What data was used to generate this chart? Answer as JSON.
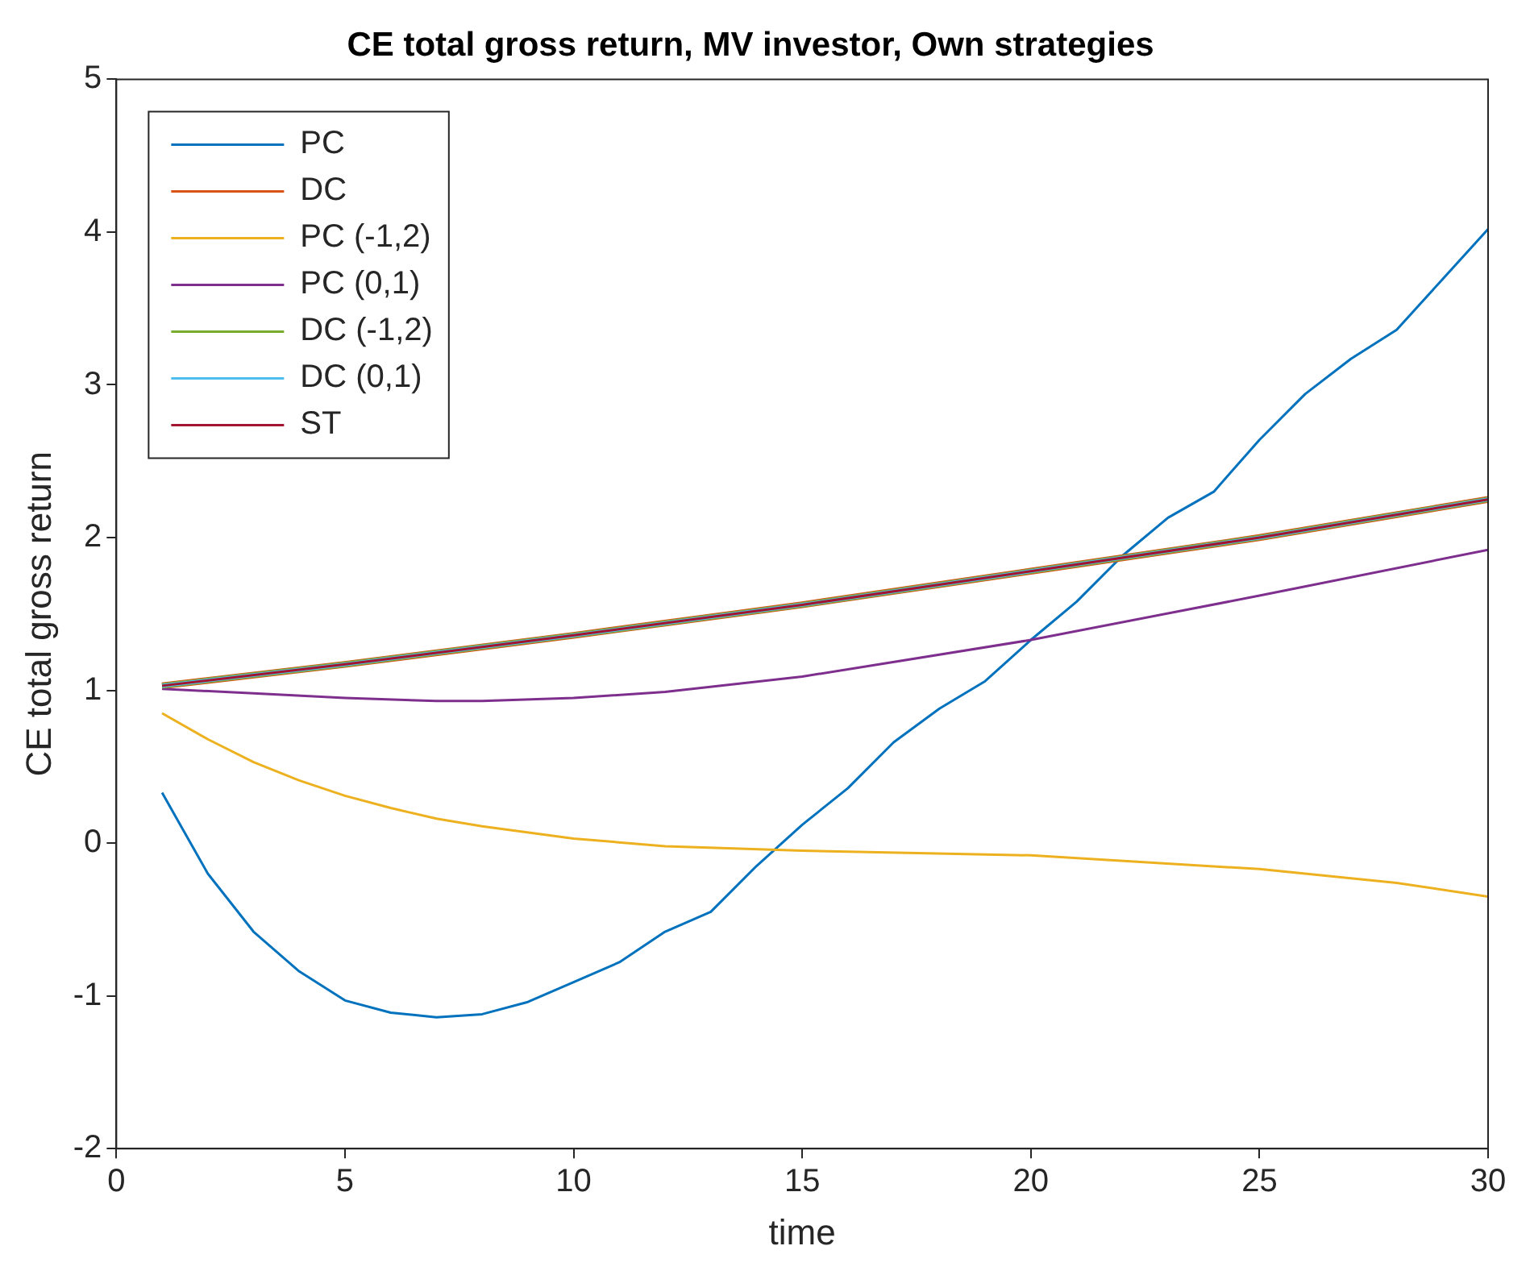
{
  "chart_data": {
    "type": "line",
    "title": "CE total gross return, MV investor, Own strategies",
    "xlabel": "time",
    "ylabel": "CE total gross return",
    "xlim": [
      0,
      30
    ],
    "xticks": [
      0,
      5,
      10,
      15,
      20,
      25,
      30
    ],
    "ylim": [
      -2,
      5
    ],
    "yticks": [
      -2,
      -1,
      0,
      1,
      2,
      3,
      4,
      5
    ],
    "grid": false,
    "legend": "top left",
    "marker": "none",
    "line_style": "solid",
    "series": [
      {
        "name": "PC",
        "color": "#0072bd",
        "x": [
          1,
          2,
          3,
          4,
          5,
          6,
          7,
          8,
          9,
          10,
          11,
          12,
          13,
          14,
          15,
          16,
          17,
          18,
          19,
          20,
          21,
          22,
          23,
          24,
          25,
          26,
          27,
          28,
          29,
          30
        ],
        "values": [
          0.33,
          -0.2,
          -0.58,
          -0.84,
          -1.03,
          -1.11,
          -1.14,
          -1.12,
          -1.04,
          -0.91,
          -0.78,
          -0.58,
          -0.45,
          -0.15,
          0.12,
          0.36,
          0.66,
          0.88,
          1.06,
          1.33,
          1.58,
          1.88,
          2.13,
          2.3,
          2.64,
          2.94,
          3.17,
          3.36,
          3.69,
          4.02
        ]
      },
      {
        "name": "DC",
        "color": "#d95319",
        "x": [
          1,
          5,
          10,
          15,
          20,
          25,
          30
        ],
        "values": [
          1.03,
          1.17,
          1.36,
          1.56,
          1.78,
          2.0,
          2.25
        ]
      },
      {
        "name": "PC (-1,2)",
        "color": "#edb120",
        "x": [
          1,
          2,
          3,
          4,
          5,
          6,
          7,
          8,
          10,
          12,
          15,
          20,
          25,
          28,
          30
        ],
        "values": [
          0.85,
          0.68,
          0.53,
          0.41,
          0.31,
          0.23,
          0.16,
          0.11,
          0.03,
          -0.02,
          -0.05,
          -0.08,
          -0.17,
          -0.26,
          -0.35
        ]
      },
      {
        "name": "PC (0,1)",
        "color": "#7e2f8e",
        "x": [
          1,
          3,
          5,
          7,
          8,
          10,
          12,
          15,
          20,
          25,
          30
        ],
        "values": [
          1.01,
          0.98,
          0.95,
          0.93,
          0.93,
          0.95,
          0.99,
          1.09,
          1.33,
          1.62,
          1.92
        ]
      },
      {
        "name": "DC (-1,2)",
        "color": "#77ac30",
        "x": [
          1,
          5,
          10,
          15,
          20,
          25,
          30
        ],
        "values": [
          1.03,
          1.17,
          1.36,
          1.56,
          1.78,
          2.0,
          2.25
        ]
      },
      {
        "name": "DC (0,1)",
        "color": "#4dbeee",
        "x": [
          1,
          5,
          10,
          15,
          20,
          25,
          30
        ],
        "values": [
          1.03,
          1.17,
          1.36,
          1.56,
          1.78,
          2.0,
          2.25
        ]
      },
      {
        "name": "ST",
        "color": "#a2142f",
        "x": [
          1,
          5,
          10,
          15,
          20,
          25,
          30
        ],
        "values": [
          1.03,
          1.17,
          1.36,
          1.56,
          1.78,
          2.0,
          2.25
        ]
      }
    ]
  }
}
